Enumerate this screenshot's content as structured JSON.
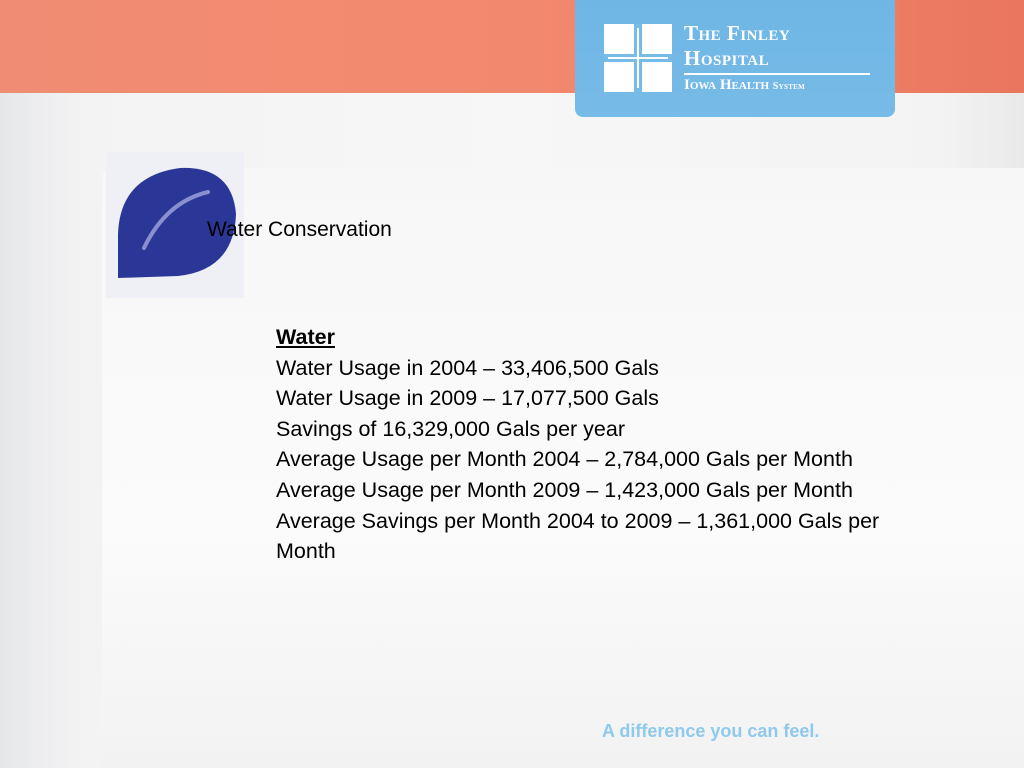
{
  "logo": {
    "line1": "The Finley",
    "line2": "Hospital",
    "line3_main": "Iowa Health",
    "line3_small": "System"
  },
  "slide": {
    "title": "Water Conservation",
    "body": {
      "heading": "Water",
      "lines": [
        "Water Usage in 2004 – 33,406,500 Gals",
        "Water Usage in 2009 – 17,077,500 Gals",
        "Savings of 16,329,000 Gals per year",
        "Average Usage per Month 2004 – 2,784,000 Gals per Month",
        "Average Usage per Month 2009 – 1,423,000 Gals per Month",
        "Average Savings per Month 2004 to 2009 – 1,361,000 Gals per Month"
      ]
    }
  },
  "footer": {
    "tagline": "A difference you can feel."
  },
  "colors": {
    "top_band": "#f08c73",
    "logo_blue": "#77bbe7",
    "drop_blue": "#2b3797",
    "tagline": "#8fc9ec"
  }
}
